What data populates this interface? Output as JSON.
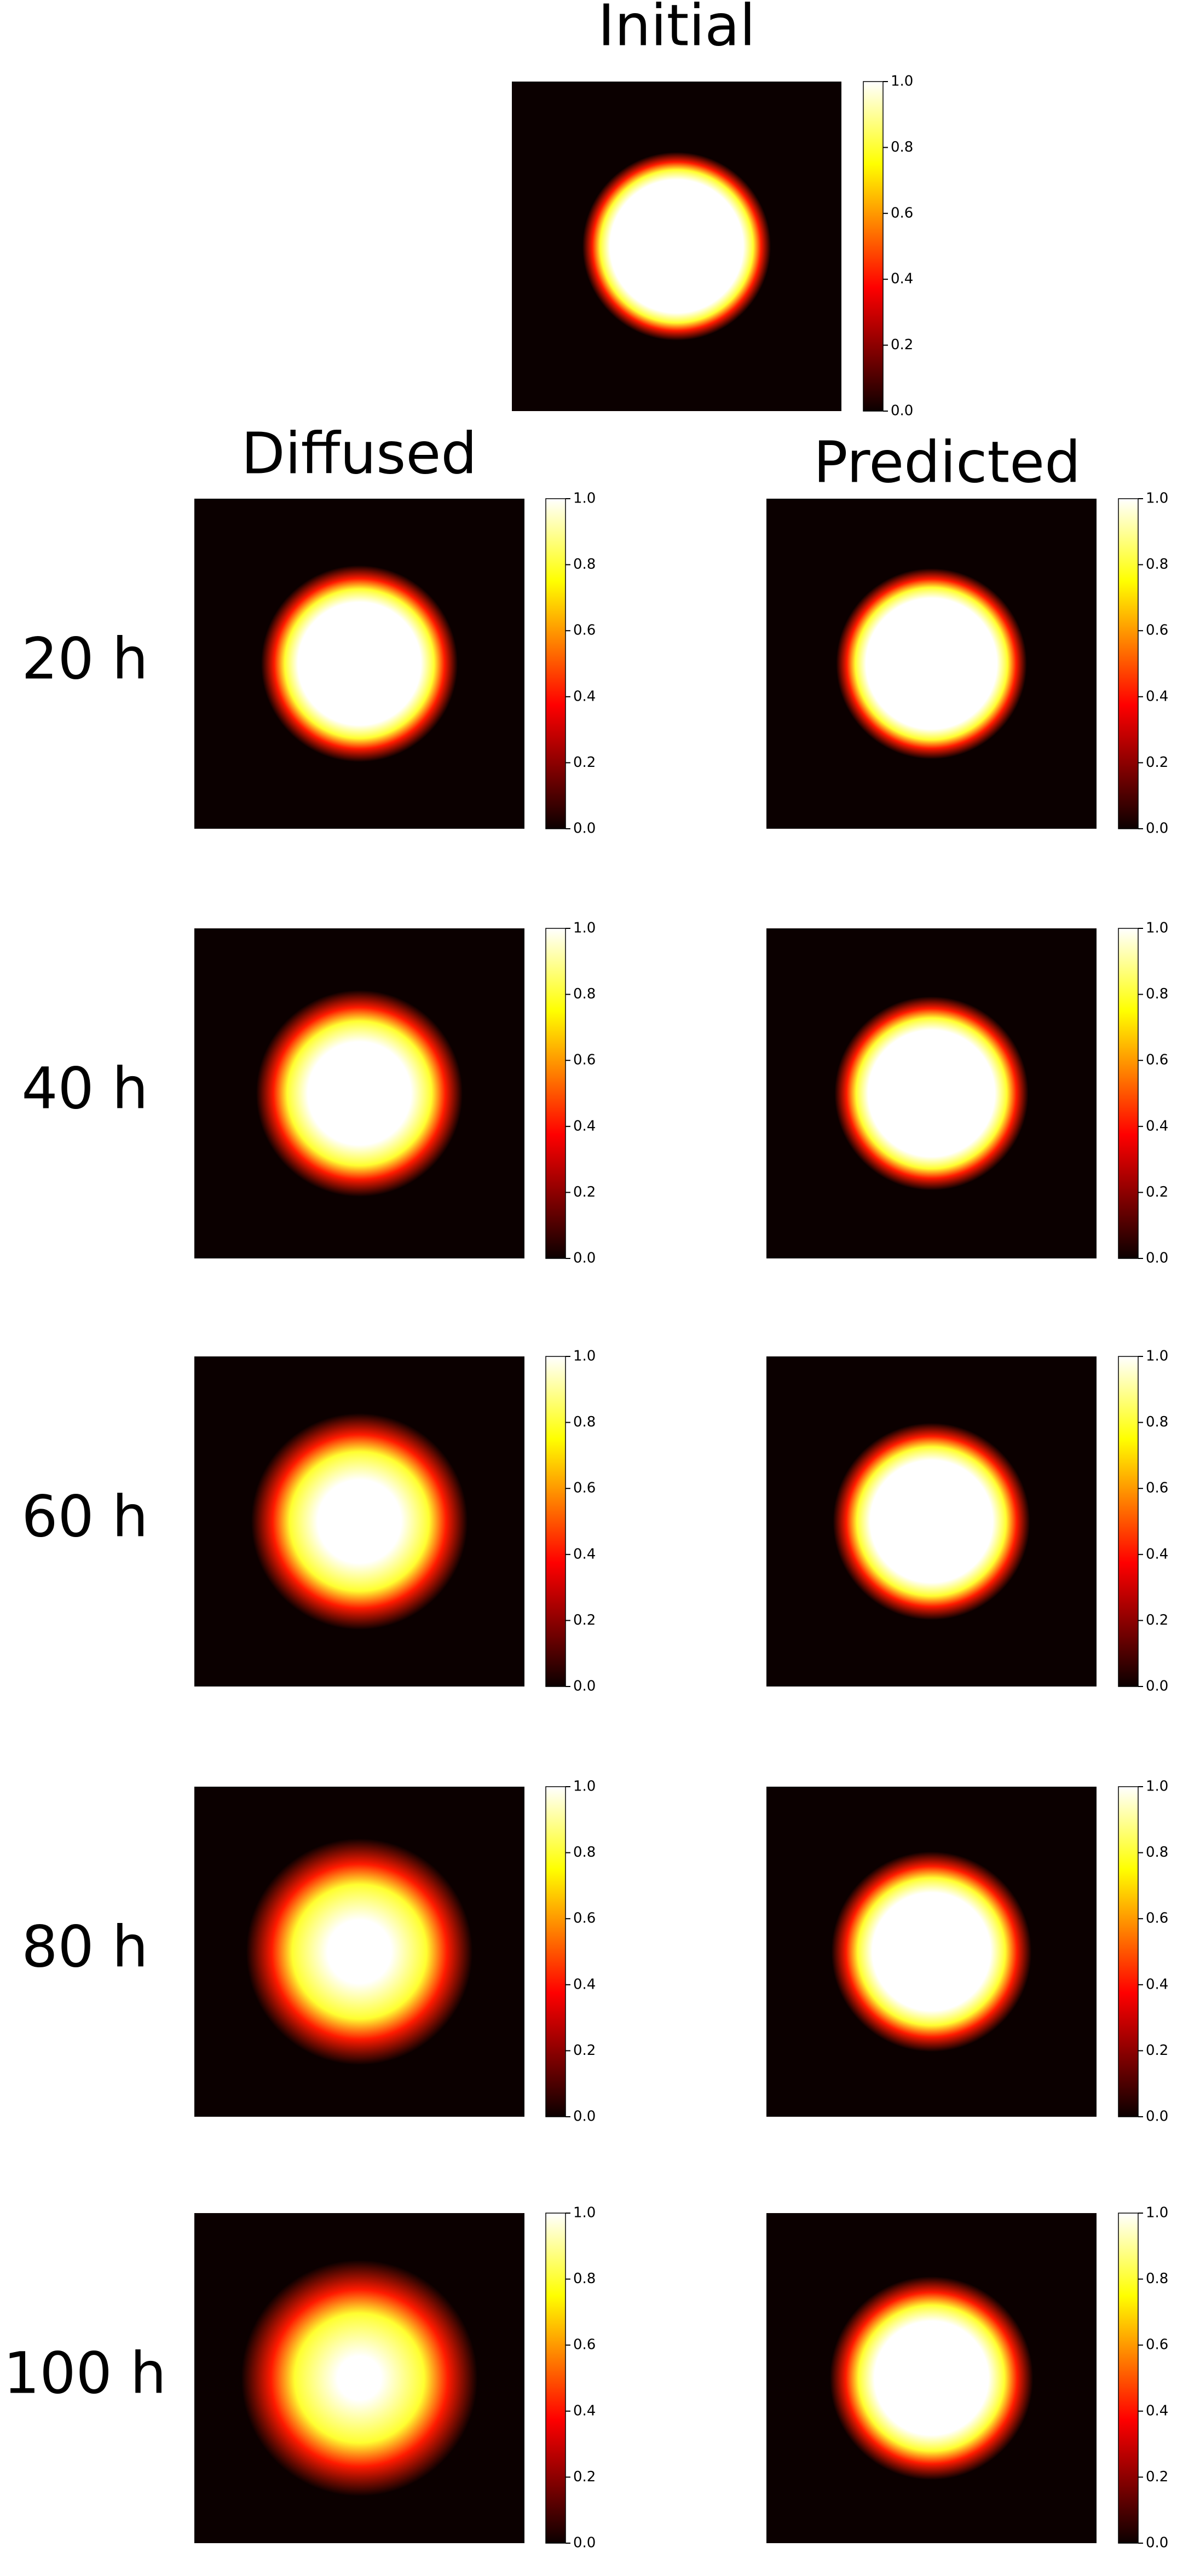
{
  "figure": {
    "title": "Initial",
    "columns": [
      "Diffused",
      "Predicted"
    ],
    "rows": [
      "20 h",
      "40 h",
      "60 h",
      "80 h",
      "100 h"
    ],
    "colorbar": {
      "cmap": "hot",
      "lim": [
        0,
        1
      ],
      "ticks": [
        {
          "value": 0,
          "label": "0.0"
        },
        {
          "value": 0.2,
          "label": "0.2"
        },
        {
          "value": 0.4,
          "label": "0.4"
        },
        {
          "value": 0.6,
          "label": "0.6"
        },
        {
          "value": 0.8,
          "label": "0.8"
        },
        {
          "value": 1,
          "label": "1.0"
        }
      ]
    }
  }
}
